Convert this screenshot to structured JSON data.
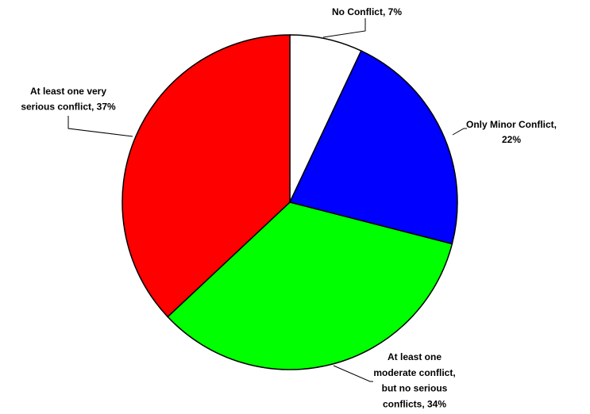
{
  "chart_data": {
    "type": "pie",
    "categories": [
      [
        "No Conflict, 7%"
      ],
      [
        "Only Minor Conflict,",
        "22%"
      ],
      [
        "At least one",
        "moderate conflict,",
        "but no serious",
        "conflicts, 34%"
      ],
      [
        "At least one very",
        "serious conflict, 37%"
      ]
    ],
    "values": [
      7,
      22,
      34,
      37
    ],
    "colors": [
      "#ffffff",
      "#0000ff",
      "#00ff00",
      "#ff0000"
    ]
  }
}
